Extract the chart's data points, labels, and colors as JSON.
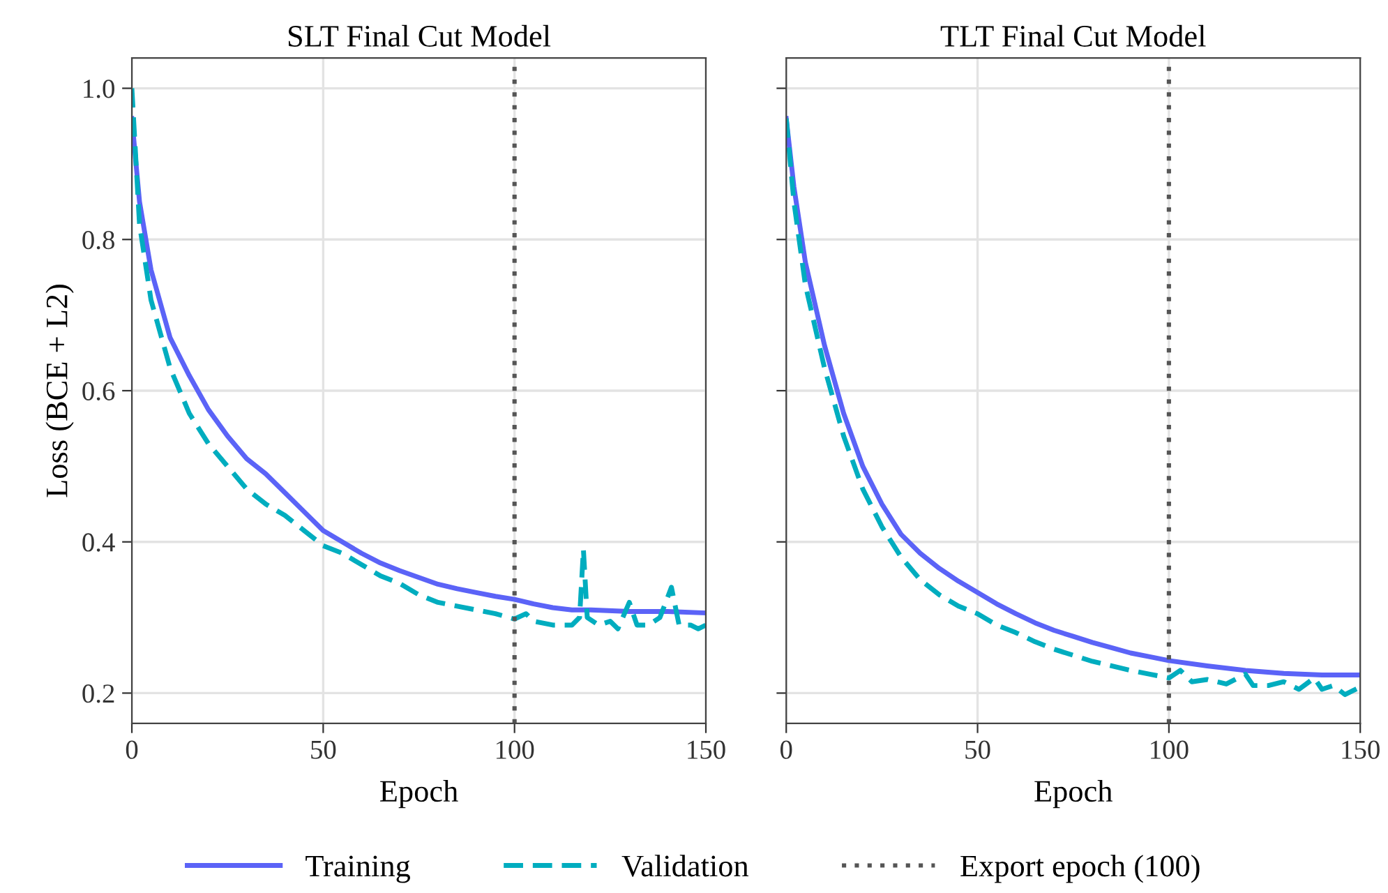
{
  "chart_data": [
    {
      "type": "line",
      "title": "SLT Final Cut Model",
      "xlabel": "Epoch",
      "ylabel": "Loss (BCE + L2)",
      "xlim": [
        0,
        150
      ],
      "xticks": [
        0,
        50,
        100,
        150
      ],
      "ylim": [
        0.16,
        1.04
      ],
      "yticks": [
        0.2,
        0.4,
        0.6,
        0.8,
        {
          "value": 1.0,
          "label": "1.0"
        }
      ],
      "grid": true,
      "legend": "bottom",
      "series": [
        {
          "name": "Training",
          "color": "#5b63f7",
          "line_style": "solid",
          "x": [
            0,
            2,
            5,
            10,
            15,
            20,
            25,
            30,
            35,
            40,
            45,
            50,
            55,
            60,
            65,
            70,
            75,
            80,
            85,
            90,
            95,
            100,
            105,
            110,
            115,
            120,
            130,
            140,
            150
          ],
          "values": [
            0.96,
            0.85,
            0.76,
            0.67,
            0.62,
            0.575,
            0.54,
            0.51,
            0.49,
            0.465,
            0.44,
            0.415,
            0.4,
            0.385,
            0.372,
            0.362,
            0.353,
            0.344,
            0.338,
            0.333,
            0.328,
            0.324,
            0.318,
            0.313,
            0.31,
            0.31,
            0.308,
            0.308,
            0.306
          ]
        },
        {
          "name": "Validation",
          "color": "#00adbf",
          "line_style": "dashed",
          "x": [
            0,
            2,
            5,
            10,
            15,
            20,
            25,
            30,
            35,
            40,
            45,
            50,
            55,
            60,
            65,
            70,
            75,
            80,
            85,
            90,
            95,
            100,
            103,
            105,
            110,
            115,
            117,
            118,
            119,
            122,
            125,
            127,
            130,
            132,
            135,
            138,
            141,
            143,
            146,
            148,
            150
          ],
          "values": [
            1.0,
            0.82,
            0.72,
            0.63,
            0.57,
            0.53,
            0.5,
            0.47,
            0.45,
            0.435,
            0.415,
            0.395,
            0.385,
            0.37,
            0.355,
            0.345,
            0.33,
            0.32,
            0.315,
            0.31,
            0.305,
            0.298,
            0.305,
            0.295,
            0.29,
            0.29,
            0.3,
            0.39,
            0.3,
            0.29,
            0.295,
            0.285,
            0.32,
            0.29,
            0.29,
            0.3,
            0.34,
            0.29,
            0.29,
            0.285,
            0.29
          ]
        }
      ],
      "ref_lines": [
        {
          "axis": "x",
          "value": 100,
          "label": "Export epoch (100)",
          "color": "#555555",
          "line_style": "dotted"
        }
      ]
    },
    {
      "type": "line",
      "title": "TLT Final Cut Model",
      "xlabel": "Epoch",
      "xlim": [
        0,
        150
      ],
      "xticks": [
        0,
        50,
        100,
        150
      ],
      "ylim": [
        0.16,
        1.04
      ],
      "yticks": [
        0.2,
        0.4,
        0.6,
        0.8,
        1.0
      ],
      "grid": true,
      "tick_labels": "x",
      "series": [
        {
          "name": "Training",
          "color": "#5b63f7",
          "line_style": "solid",
          "x": [
            0,
            2,
            5,
            10,
            15,
            20,
            25,
            30,
            35,
            40,
            45,
            50,
            55,
            60,
            65,
            70,
            75,
            80,
            85,
            90,
            95,
            100,
            110,
            120,
            130,
            140,
            150
          ],
          "values": [
            0.96,
            0.87,
            0.77,
            0.66,
            0.57,
            0.5,
            0.45,
            0.41,
            0.385,
            0.365,
            0.348,
            0.333,
            0.318,
            0.305,
            0.293,
            0.283,
            0.275,
            0.267,
            0.26,
            0.253,
            0.248,
            0.243,
            0.236,
            0.23,
            0.226,
            0.224,
            0.224
          ]
        },
        {
          "name": "Validation",
          "color": "#00adbf",
          "line_style": "dashed",
          "x": [
            0,
            2,
            5,
            10,
            15,
            20,
            25,
            30,
            35,
            40,
            45,
            50,
            55,
            60,
            65,
            70,
            75,
            80,
            85,
            90,
            95,
            100,
            103,
            106,
            110,
            115,
            120,
            122,
            126,
            130,
            134,
            138,
            140,
            143,
            146,
            150
          ],
          "values": [
            0.96,
            0.85,
            0.74,
            0.63,
            0.54,
            0.47,
            0.42,
            0.38,
            0.35,
            0.33,
            0.315,
            0.305,
            0.29,
            0.28,
            0.268,
            0.258,
            0.25,
            0.242,
            0.236,
            0.23,
            0.225,
            0.22,
            0.23,
            0.215,
            0.218,
            0.212,
            0.225,
            0.21,
            0.21,
            0.215,
            0.205,
            0.22,
            0.205,
            0.21,
            0.198,
            0.208
          ]
        }
      ],
      "ref_lines": [
        {
          "axis": "x",
          "value": 100,
          "color": "#555555",
          "line_style": "dotted"
        }
      ]
    }
  ]
}
